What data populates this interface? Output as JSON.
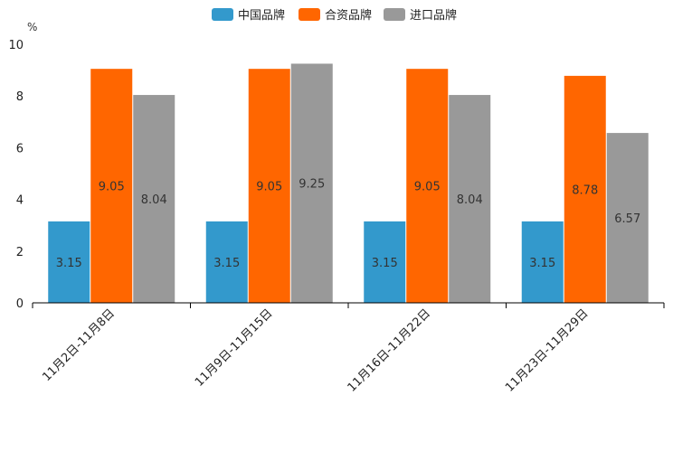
{
  "chart_data": {
    "type": "bar",
    "title": "",
    "xlabel": "",
    "ylabel": "%",
    "ylim": [
      0,
      10
    ],
    "yticks": [
      0,
      2,
      4,
      6,
      8,
      10
    ],
    "grid": false,
    "legend_position": "top-center",
    "categories": [
      "11月2日-11月8日",
      "11月9日-11月15日",
      "11月16日-11月22日",
      "11月23日-11月29日"
    ],
    "series": [
      {
        "name": "中国品牌",
        "color": "#3399cc",
        "values": [
          3.15,
          3.15,
          3.15,
          3.15
        ],
        "labels": [
          "3.15",
          "3.15",
          "3.15",
          "3.15"
        ]
      },
      {
        "name": "合资品牌",
        "color": "#ff6600",
        "values": [
          9.05,
          9.05,
          9.05,
          8.78
        ],
        "labels": [
          "9.05",
          "9.05",
          "9.05",
          "8.78"
        ]
      },
      {
        "name": "进口品牌",
        "color": "#999999",
        "values": [
          8.04,
          9.25,
          8.04,
          6.57
        ],
        "labels": [
          "8.04",
          "9.25",
          "8.04",
          "6.57"
        ]
      }
    ]
  }
}
